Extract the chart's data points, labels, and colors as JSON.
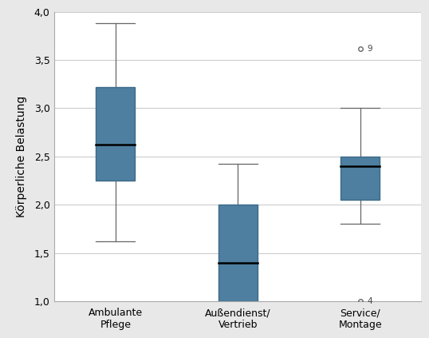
{
  "categories": [
    "Ambulante\nPflege",
    "Außendienst/\nVertrieb",
    "Service/\nMontage"
  ],
  "box_data": [
    {
      "whisker_low": 1.62,
      "q1": 2.25,
      "median": 2.62,
      "q3": 3.22,
      "whisker_high": 3.88,
      "outliers": [],
      "outlier_labels": []
    },
    {
      "whisker_low": 1.0,
      "q1": 1.0,
      "median": 1.4,
      "q3": 2.0,
      "whisker_high": 2.42,
      "outliers": [],
      "outlier_labels": []
    },
    {
      "whisker_low": 1.8,
      "q1": 2.05,
      "median": 2.4,
      "q3": 2.5,
      "whisker_high": 3.0,
      "outliers": [
        1.0,
        3.62
      ],
      "outlier_labels": [
        "4",
        "9"
      ]
    }
  ],
  "ylim": [
    1.0,
    4.0
  ],
  "yticks": [
    1.0,
    1.5,
    2.0,
    2.5,
    3.0,
    3.5,
    4.0
  ],
  "ytick_labels": [
    "1,0",
    "1,5",
    "2,0",
    "2,5",
    "3,0",
    "3,5",
    "4,0"
  ],
  "ylabel": "Körperliche Belastung",
  "box_color": "#4e7fa0",
  "box_edge_color": "#3a6a88",
  "median_color": "#000000",
  "whisker_color": "#666666",
  "background_color": "#e8e8e8",
  "plot_bg_color": "#ffffff",
  "grid_color": "#cccccc",
  "box_width": 0.32,
  "figsize": [
    5.38,
    4.23
  ],
  "dpi": 100
}
